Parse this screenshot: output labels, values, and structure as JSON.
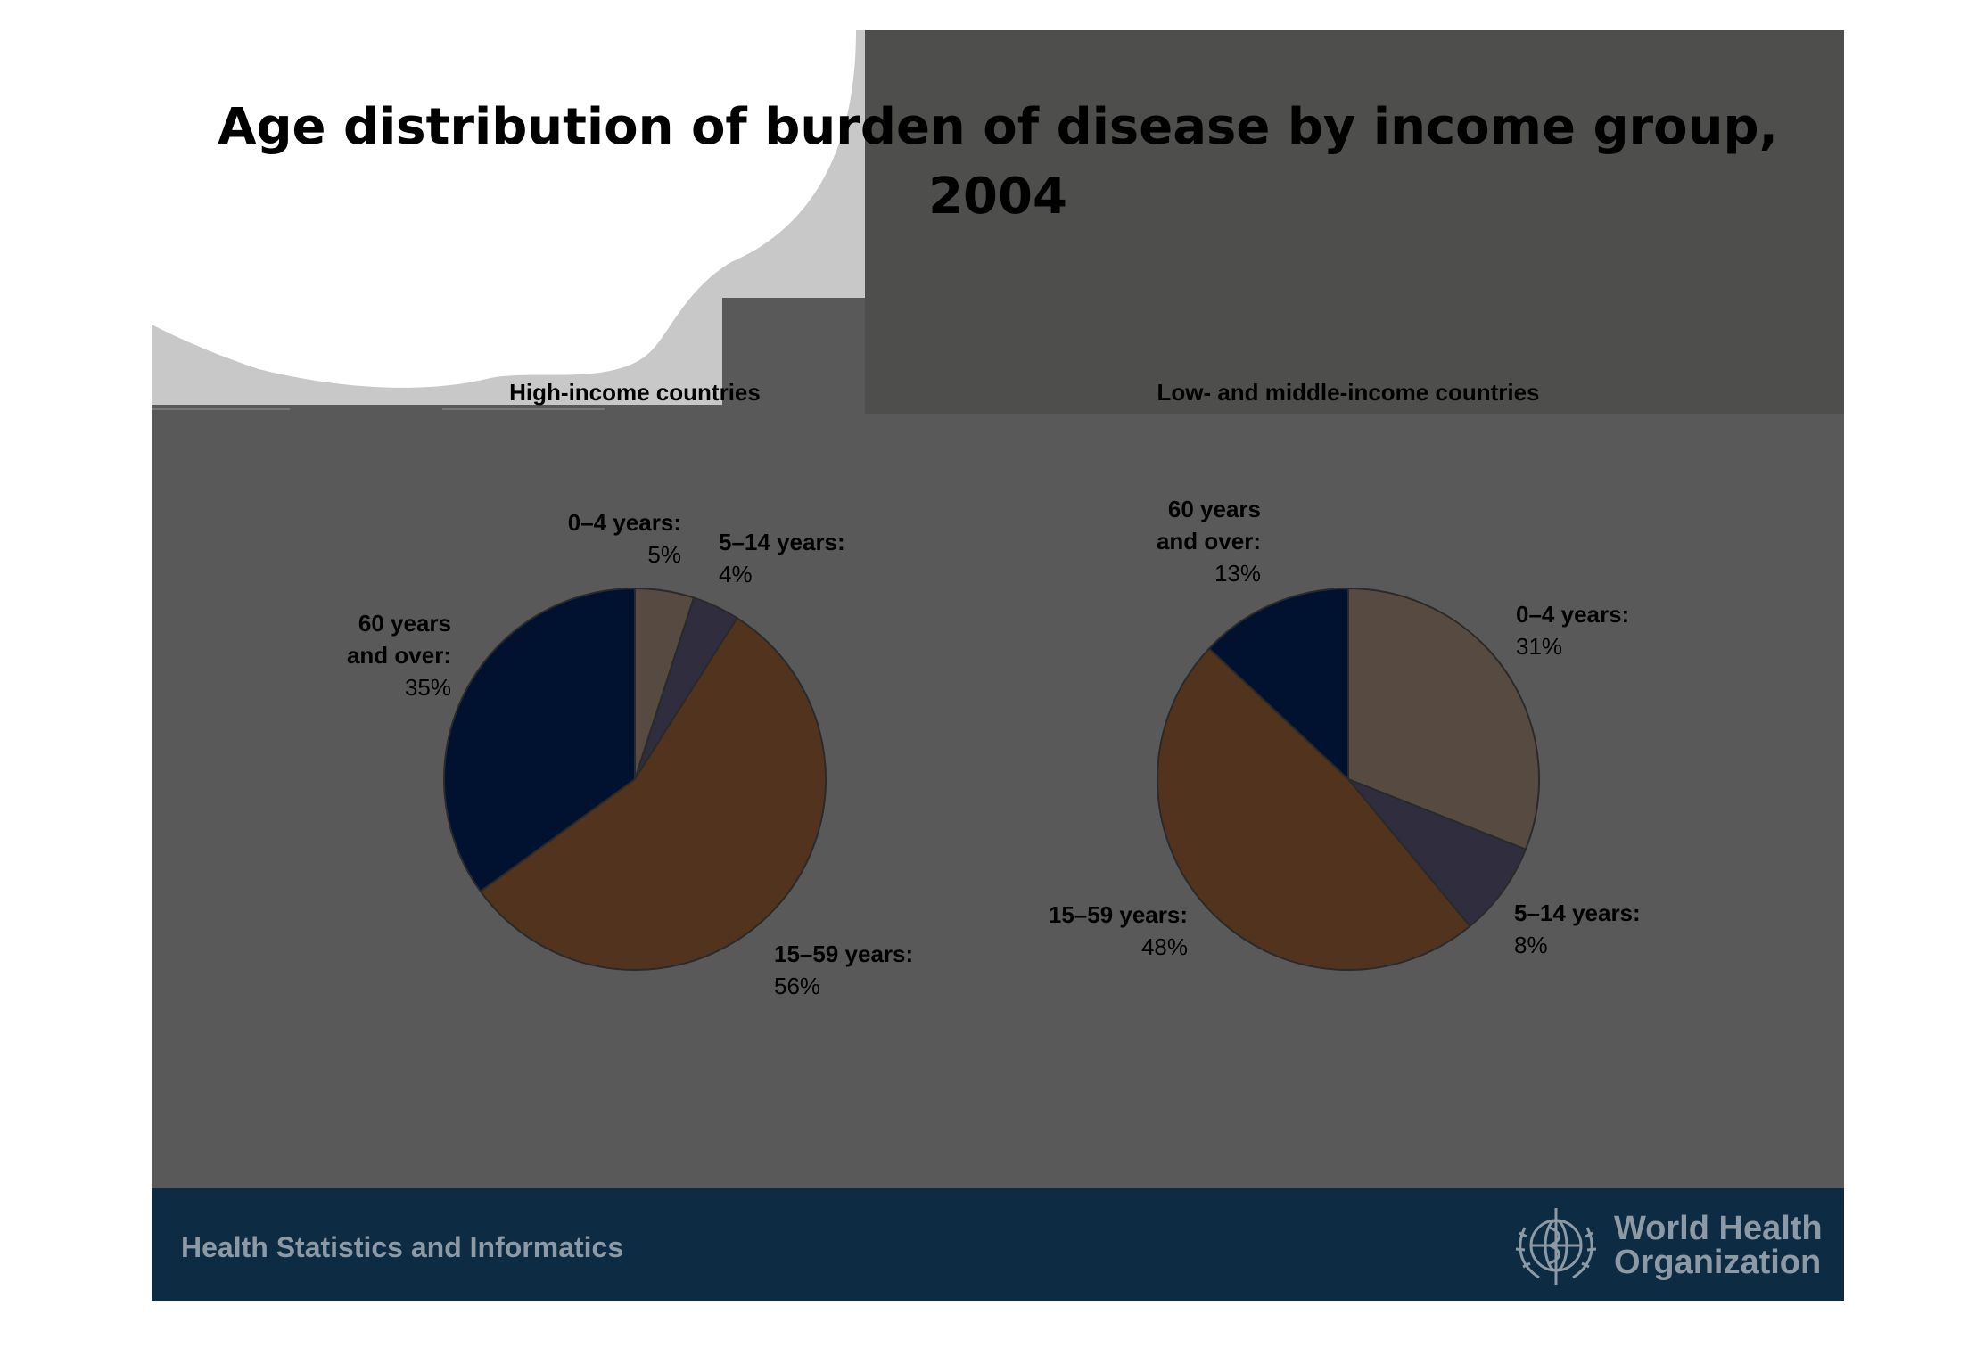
{
  "slide": {
    "title": "Age distribution of burden of disease by income group, 2004",
    "footer_text": "Health Statistics and Informatics",
    "logo_line1": "World Health",
    "logo_line2": "Organization",
    "logo_icon": "who-emblem-icon"
  },
  "colors": {
    "slide_bg": "#595959",
    "footer_bg": "#0d2b42",
    "age_0_4": "#574a40",
    "age_5_14": "#302d3e",
    "age_15_59": "#52331e",
    "age_60_plus": "#001230"
  },
  "chart_data": [
    {
      "type": "pie",
      "title": "High-income countries",
      "slices": [
        {
          "label": "0–4 years:",
          "value": 5,
          "value_label": "5%"
        },
        {
          "label": "5–14 years:",
          "value": 4,
          "value_label": "4%"
        },
        {
          "label": "15–59 years:",
          "value": 56,
          "value_label": "56%"
        },
        {
          "label": "60 years and over:",
          "label_lines": [
            "60 years",
            "and over:"
          ],
          "value": 35,
          "value_label": "35%"
        }
      ]
    },
    {
      "type": "pie",
      "title": "Low- and middle-income countries",
      "slices": [
        {
          "label": "0–4 years:",
          "value": 31,
          "value_label": "31%"
        },
        {
          "label": "5–14 years:",
          "value": 8,
          "value_label": "8%"
        },
        {
          "label": "15–59 years:",
          "value": 48,
          "value_label": "48%"
        },
        {
          "label": "60 years and over:",
          "label_lines": [
            "60 years",
            "and over:"
          ],
          "value": 13,
          "value_label": "13%"
        }
      ]
    }
  ]
}
